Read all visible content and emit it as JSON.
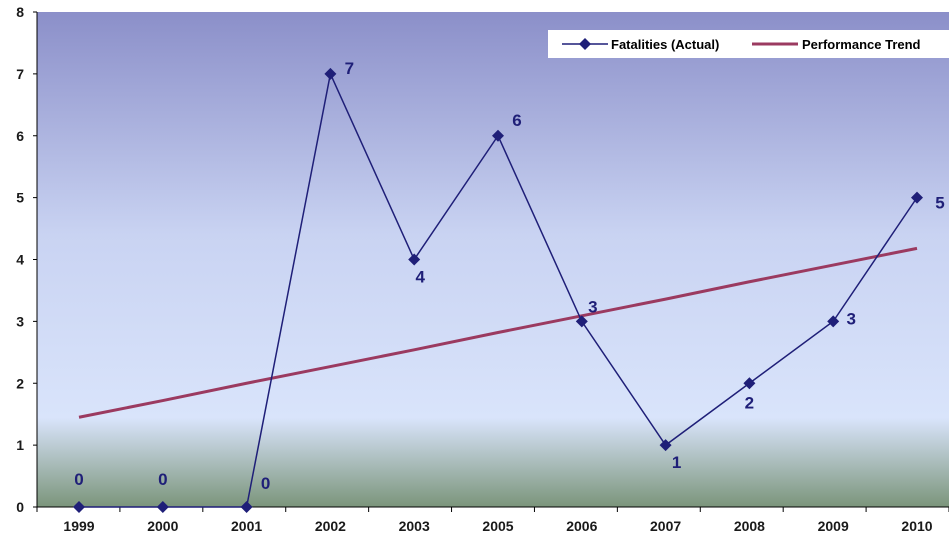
{
  "chart_data": {
    "type": "line",
    "title": "",
    "xlabel": "",
    "ylabel": "",
    "categories": [
      "1999",
      "2000",
      "2001",
      "2002",
      "2003",
      "2005",
      "2006",
      "2007",
      "2008",
      "2009",
      "2010"
    ],
    "ylim": [
      0,
      8
    ],
    "yticks": [
      "0",
      "1",
      "2",
      "3",
      "4",
      "5",
      "6",
      "7",
      "8"
    ],
    "grid": false,
    "legend_position": "top-right",
    "series": [
      {
        "name": "Fatalities (Actual)",
        "values": [
          0,
          0,
          0,
          7,
          4,
          6,
          3,
          1,
          2,
          3,
          5
        ],
        "labels": [
          "0",
          "0",
          "0",
          "7",
          "4",
          "6",
          "3",
          "1",
          "2",
          "3",
          "5"
        ],
        "color": "#1f1f78",
        "marker": "diamond"
      },
      {
        "name": "Performance Trend",
        "type": "linear-trend",
        "values": [
          1.45,
          1.72,
          2.0,
          2.27,
          2.54,
          2.82,
          3.09,
          3.36,
          3.64,
          3.91,
          4.18
        ],
        "color": "#9b3a60"
      }
    ],
    "background_gradient": [
      "#8b8fc9",
      "#c9d3f2",
      "#d9e4fb",
      "#7b957b"
    ]
  }
}
